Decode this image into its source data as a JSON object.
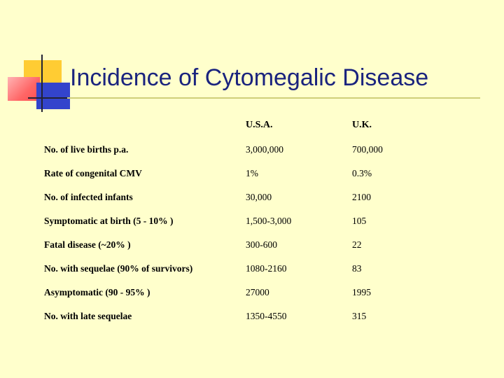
{
  "title": "Incidence of Cytomegalic Disease",
  "columns": {
    "usa": "U.S.A.",
    "uk": "U.K."
  },
  "rows": [
    {
      "label": "No. of live births p.a.",
      "usa": "3,000,000",
      "uk": "700,000"
    },
    {
      "label": "Rate of congenital CMV",
      "usa": "1%",
      "uk": "0.3%"
    },
    {
      "label": "No. of infected infants",
      "usa": "30,000",
      "uk": "2100"
    },
    {
      "label": "Symptomatic at birth (5 - 10% )",
      "usa": "1,500-3,000",
      "uk": "105"
    },
    {
      "label": "Fatal disease (~20% )",
      "usa": "300-600",
      "uk": "22"
    },
    {
      "label": "No. with sequelae (90% of survivors)",
      "usa": "1080-2160",
      "uk": "83"
    },
    {
      "label": "Asymptomatic (90 - 95% )",
      "usa": "27000",
      "uk": "1995"
    },
    {
      "label": "No. with late sequelae",
      "usa": "1350-4550",
      "uk": "315"
    }
  ]
}
